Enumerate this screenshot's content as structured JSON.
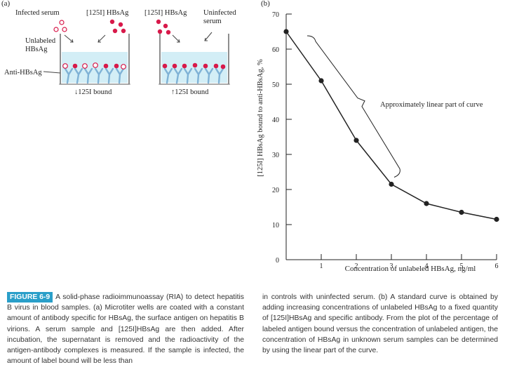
{
  "panel_a": {
    "label": "(a)",
    "left_well": {
      "infected_serum": "Infected serum",
      "labeled_antigen": "[125I] HBsAg",
      "unlabeled_label": "Unlabeled HBsAg",
      "antibody_label": "Anti-HBsAg",
      "bound_label": "↓125I bound"
    },
    "right_well": {
      "labeled_antigen": "[125I] HBsAg",
      "uninfected_serum": "Uninfected serum",
      "bound_label": "↑125I bound"
    }
  },
  "panel_b": {
    "label": "(b)",
    "annotation": "Approximately linear part of curve"
  },
  "caption": {
    "figure_label": "FIGURE 6-9",
    "col1": "A solid-phase radioimmunoassay (RIA) to detect hepatitis B virus in blood samples. (a) Microtiter wells are coated with a constant amount of antibody specific for HBsAg, the surface antigen on hepatitis B virions. A serum sample and [125I]HBsAg are then added. After incubation, the supernatant is removed and the radioactivity of the antigen-antibody complexes is measured. If the sample is infected, the amount of label bound will be less than",
    "col2": "in controls with uninfected serum. (b) A standard curve is obtained by adding increasing concentrations of unlabeled HBsAg to a fixed quantity of [125I]HBsAg and specific antibody. From the plot of the percentage of labeled antigen bound versus the concentration of unlabeled antigen, the concentration of HBsAg in unknown serum samples can be determined by using the linear part of the curve."
  },
  "colors": {
    "antigen_red": "#d8194a",
    "unlabeled_outline": "#d8194a",
    "liquid": "#d3eef6",
    "antibody": "#7fb2d6",
    "badge": "#2a9fc9"
  },
  "chart_data": {
    "type": "line",
    "xlabel": "Concentration of unlabeled HBsAg, ng/ml",
    "ylabel": "[125I] HBsAg bound to anti-HBsAg, %",
    "x": [
      0,
      1,
      2,
      3,
      4,
      5,
      6
    ],
    "y": [
      65,
      51,
      34,
      21.5,
      16,
      13.5,
      11.5
    ],
    "xticks": [
      1,
      2,
      3,
      4,
      5,
      6
    ],
    "yticks": [
      10,
      20,
      30,
      40,
      50,
      60,
      70
    ],
    "x_origin_label": "0",
    "xlim": [
      0,
      6
    ],
    "ylim": [
      0,
      70
    ],
    "grid": false,
    "annotation": "Approximately linear part of curve",
    "linear_range_x": [
      0,
      3
    ]
  }
}
